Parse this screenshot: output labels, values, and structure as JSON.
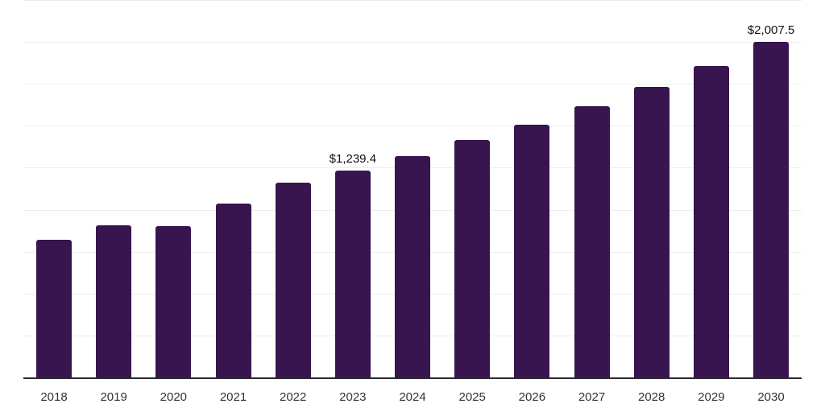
{
  "chart_data": {
    "type": "bar",
    "title": "",
    "xlabel": "",
    "ylabel": "",
    "categories": [
      "2018",
      "2019",
      "2020",
      "2021",
      "2022",
      "2023",
      "2024",
      "2025",
      "2026",
      "2027",
      "2028",
      "2029",
      "2030"
    ],
    "values": [
      825.2,
      911.5,
      906.7,
      1042.6,
      1165.8,
      1239.4,
      1326.5,
      1420.1,
      1509.8,
      1623.0,
      1735.2,
      1862.8,
      2007.5
    ],
    "value_labels": [
      "",
      "",
      "",
      "",
      "",
      "$1,239.4",
      "",
      "",
      "",
      "",
      "",
      "",
      "$2,007.5"
    ],
    "ylim": [
      0,
      2250
    ],
    "grid_step": 250,
    "grid": true,
    "legend_position": "none",
    "y_axis_tick_labels_visible": false
  },
  "colors": {
    "bar": "#38154F",
    "gridline": "#ededed",
    "axis_line": "#2b2b2b",
    "tick_label": "#333333",
    "value_label": "#111111",
    "background": "#ffffff"
  }
}
